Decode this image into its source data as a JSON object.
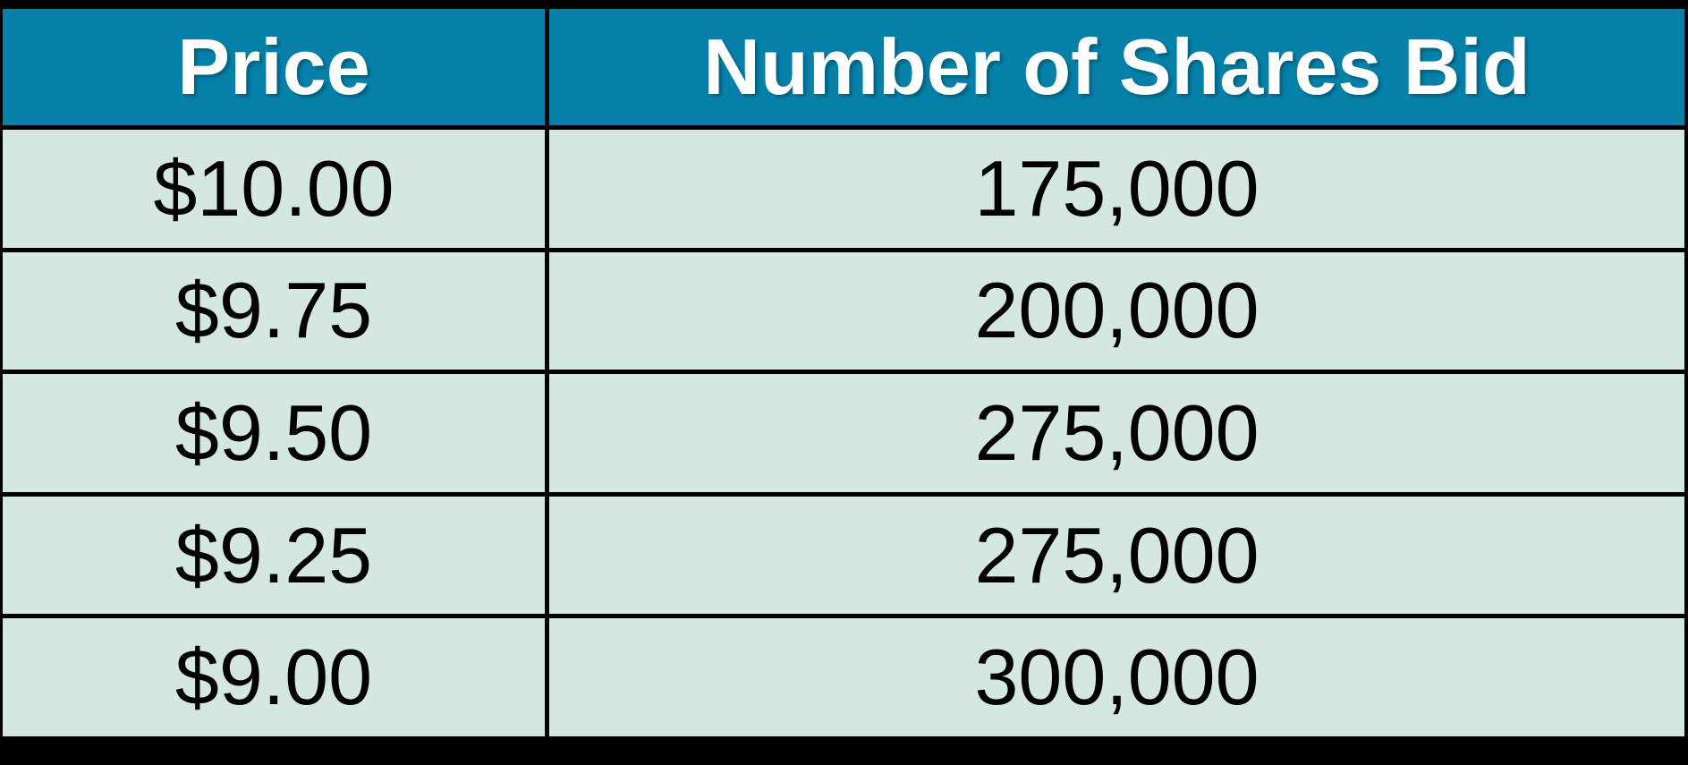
{
  "table": {
    "columns": [
      {
        "label": "Price"
      },
      {
        "label": "Number of Shares Bid"
      }
    ],
    "rows": [
      {
        "price": "$10.00",
        "shares": "175,000"
      },
      {
        "price": "$9.75",
        "shares": "200,000"
      },
      {
        "price": "$9.50",
        "shares": "275,000"
      },
      {
        "price": "$9.25",
        "shares": "275,000"
      },
      {
        "price": "$9.00",
        "shares": "300,000"
      }
    ]
  },
  "colors": {
    "header_bg": "#0580A8",
    "header_text": "#FFFFFF",
    "row_bg": "#D4E8E1",
    "body_text": "#000000",
    "border": "#000000"
  },
  "chart_data": {
    "type": "table",
    "columns": [
      "Price",
      "Number of Shares Bid"
    ],
    "rows": [
      [
        "$10.00",
        "175,000"
      ],
      [
        "$9.75",
        "200,000"
      ],
      [
        "$9.50",
        "275,000"
      ],
      [
        "$9.25",
        "275,000"
      ],
      [
        "$9.00",
        "300,000"
      ]
    ],
    "prices_numeric": [
      10.0,
      9.75,
      9.5,
      9.25,
      9.0
    ],
    "shares_numeric": [
      175000,
      200000,
      275000,
      275000,
      300000
    ]
  }
}
